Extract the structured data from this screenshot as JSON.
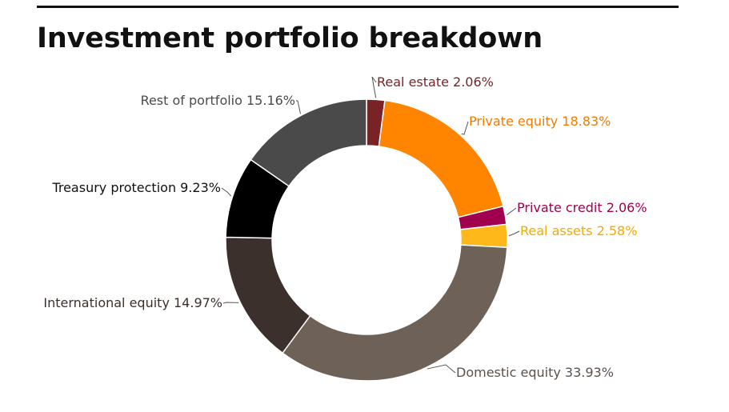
{
  "page": {
    "title": "Investment portfolio breakdown"
  },
  "chart_data": {
    "type": "pie",
    "variant": "donut",
    "title": "Investment portfolio breakdown",
    "unit": "%",
    "slices": [
      {
        "label": "Real estate",
        "value": 2.06,
        "display": "Real estate 2.06%",
        "color": "#7a2327",
        "label_color": "#7a2327"
      },
      {
        "label": "Private equity",
        "value": 18.83,
        "display": "Private equity 18.83%",
        "color": "#ff8400",
        "label_color": "#f07b00"
      },
      {
        "label": "Private credit",
        "value": 2.06,
        "display": "Private credit 2.06%",
        "color": "#a1004f",
        "label_color": "#a1004f"
      },
      {
        "label": "Real assets",
        "value": 2.58,
        "display": "Real assets 2.58%",
        "color": "#ffb819",
        "label_color": "#f5a800"
      },
      {
        "label": "Domestic equity",
        "value": 33.93,
        "display": "Domestic equity 33.93%",
        "color": "#6e6157",
        "label_color": "#5b524c"
      },
      {
        "label": "International equity",
        "value": 14.97,
        "display": "International equity 14.97%",
        "color": "#3b302c",
        "label_color": "#3b302c"
      },
      {
        "label": "Treasury protection",
        "value": 9.23,
        "display": "Treasury protection 9.23%",
        "color": "#000000",
        "label_color": "#111111"
      },
      {
        "label": "Rest of portfolio",
        "value": 15.16,
        "display": "Rest of portfolio 15.16%",
        "color": "#4a4a4a",
        "label_color": "#4a4a4a"
      }
    ],
    "legend": "none"
  }
}
